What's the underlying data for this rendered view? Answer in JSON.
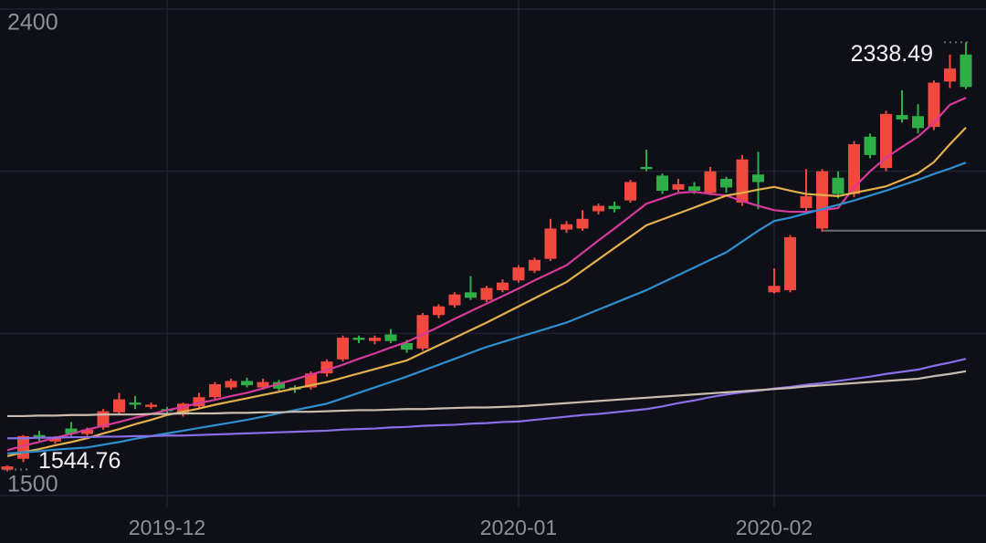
{
  "chart_data": {
    "type": "candlestick",
    "categories": [
      null,
      null,
      null,
      null,
      null,
      null,
      null,
      null,
      null,
      null,
      "2019-12",
      null,
      null,
      null,
      null,
      null,
      null,
      null,
      null,
      null,
      null,
      null,
      null,
      null,
      null,
      null,
      null,
      null,
      null,
      null,
      null,
      null,
      "2020-01",
      null,
      null,
      null,
      null,
      null,
      null,
      null,
      null,
      null,
      null,
      null,
      null,
      null,
      null,
      null,
      "2020-02",
      null,
      null,
      null,
      null,
      null,
      null,
      null,
      null,
      null,
      null,
      null,
      null
    ],
    "open": [
      1548,
      1568,
      1612,
      1600,
      1624,
      1614,
      1626,
      1654,
      1672,
      1664,
      1660,
      1650,
      1665,
      1682,
      1700,
      1712,
      1700,
      1710,
      1700,
      1700,
      1726,
      1752,
      1792,
      1786,
      1798,
      1782,
      1772,
      1834,
      1852,
      1876,
      1862,
      1880,
      1898,
      1916,
      1938,
      1992,
      1994,
      2026,
      2036,
      2046,
      2108,
      2092,
      2066,
      2072,
      2060,
      2086,
      2042,
      2094,
      1876,
      1880,
      2032,
      1994,
      2088,
      2058,
      2164,
      2106,
      2204,
      2202,
      2182,
      2266,
      2316
    ],
    "high": [
      1556,
      1612,
      1620,
      1610,
      1636,
      1626,
      1660,
      1690,
      1684,
      1672,
      1664,
      1672,
      1690,
      1710,
      1716,
      1718,
      1716,
      1714,
      1704,
      1730,
      1752,
      1796,
      1796,
      1796,
      1808,
      1788,
      1838,
      1854,
      1876,
      1906,
      1888,
      1900,
      1926,
      1940,
      2012,
      2008,
      2028,
      2040,
      2044,
      2084,
      2140,
      2096,
      2086,
      2080,
      2108,
      2090,
      2130,
      2136,
      1920,
      1982,
      2104,
      2104,
      2100,
      2156,
      2170,
      2212,
      2250,
      2224,
      2268,
      2316,
      2338.49
    ],
    "low": [
      1544.76,
      1562,
      1600,
      1596,
      1610,
      1610,
      1622,
      1650,
      1660,
      1660,
      1652,
      1646,
      1660,
      1678,
      1696,
      1700,
      1696,
      1694,
      1690,
      1696,
      1720,
      1748,
      1782,
      1780,
      1782,
      1764,
      1768,
      1828,
      1848,
      1862,
      1858,
      1876,
      1894,
      1912,
      1934,
      1986,
      1990,
      2020,
      2024,
      2042,
      2100,
      2058,
      2062,
      2058,
      2056,
      2060,
      2036,
      2030,
      1874,
      1876,
      2026,
      1988,
      2050,
      2052,
      2124,
      2100,
      2190,
      2170,
      2176,
      2254,
      2252
    ],
    "close": [
      1554,
      1610,
      1608,
      1606,
      1614,
      1622,
      1656,
      1678,
      1668,
      1668,
      1656,
      1670,
      1682,
      1706,
      1712,
      1704,
      1710,
      1698,
      1696,
      1726,
      1748,
      1792,
      1788,
      1792,
      1786,
      1770,
      1834,
      1850,
      1872,
      1866,
      1884,
      1894,
      1922,
      1936,
      1994,
      2002,
      2012,
      2036,
      2030,
      2080,
      2104,
      2064,
      2076,
      2064,
      2100,
      2070,
      2122,
      2080,
      1888,
      1978,
      2054,
      2100,
      2058,
      2150,
      2130,
      2206,
      2196,
      2180,
      2264,
      2290,
      2256
    ],
    "up_color": "#f2493f",
    "down_color": "#2fae48",
    "series": [
      {
        "color": "#d63a9a",
        "values": [
          1584,
          1592,
          1599,
          1607,
          1614,
          1622,
          1629,
          1636,
          1644,
          1651,
          1658,
          1664,
          1671,
          1677,
          1684,
          1690,
          1698,
          1707,
          1715,
          1724,
          1732,
          1742,
          1753,
          1763,
          1774,
          1784,
          1798,
          1812,
          1827,
          1841,
          1855,
          1869,
          1883,
          1898,
          1912,
          1926,
          1949,
          1972,
          1994,
          2017,
          2040,
          2050,
          2060,
          2062,
          2058,
          2055,
          2045,
          2036,
          2028,
          2025,
          2025,
          2028,
          2032,
          2070,
          2100,
          2125,
          2145,
          2164,
          2190,
          2223,
          2236
        ]
      },
      {
        "color": "#e3b04b",
        "values": [
          1573,
          1580,
          1586,
          1593,
          1599,
          1606,
          1615,
          1623,
          1632,
          1640,
          1649,
          1655,
          1661,
          1668,
          1674,
          1680,
          1686,
          1692,
          1698,
          1704,
          1710,
          1718,
          1726,
          1734,
          1742,
          1750,
          1764,
          1778,
          1792,
          1806,
          1820,
          1835,
          1850,
          1865,
          1880,
          1895,
          1916,
          1937,
          1958,
          1979,
          2000,
          2011,
          2022,
          2033,
          2044,
          2055,
          2060,
          2066,
          2071,
          2064,
          2058,
          2056,
          2054,
          2060,
          2066,
          2072,
          2084,
          2096,
          2117,
          2150,
          2181
        ]
      },
      {
        "color": "#2e8fcf",
        "values": [
          1578,
          1580,
          1582,
          1585,
          1587,
          1589,
          1594,
          1599,
          1605,
          1610,
          1615,
          1620,
          1625,
          1630,
          1635,
          1640,
          1646,
          1652,
          1658,
          1664,
          1670,
          1680,
          1690,
          1700,
          1710,
          1720,
          1731,
          1742,
          1753,
          1764,
          1775,
          1784,
          1793,
          1802,
          1811,
          1820,
          1832,
          1844,
          1856,
          1868,
          1880,
          1894,
          1908,
          1922,
          1936,
          1950,
          1970,
          1990,
          2008,
          2014,
          2022,
          2030,
          2038,
          2046,
          2055,
          2064,
          2074,
          2084,
          2095,
          2105,
          2116
        ]
      },
      {
        "color": "#8a6ee8",
        "values": [
          1606,
          1606,
          1607,
          1607,
          1608,
          1608,
          1609,
          1609,
          1610,
          1610,
          1611,
          1611,
          1612,
          1613,
          1614,
          1615,
          1616,
          1617,
          1618,
          1619,
          1620,
          1622,
          1623,
          1624,
          1626,
          1627,
          1629,
          1630,
          1631,
          1633,
          1634,
          1636,
          1637,
          1640,
          1643,
          1646,
          1649,
          1651,
          1654,
          1657,
          1660,
          1665,
          1671,
          1676,
          1682,
          1687,
          1691,
          1694,
          1698,
          1701,
          1705,
          1708,
          1712,
          1716,
          1720,
          1725,
          1729,
          1733,
          1740,
          1746,
          1753
        ]
      },
      {
        "color": "#cbbcb0",
        "values": [
          1647,
          1647,
          1648,
          1648,
          1649,
          1649,
          1650,
          1650,
          1650,
          1651,
          1651,
          1652,
          1652,
          1652,
          1653,
          1653,
          1654,
          1654,
          1655,
          1655,
          1656,
          1657,
          1658,
          1658,
          1659,
          1660,
          1660,
          1661,
          1662,
          1663,
          1663,
          1664,
          1665,
          1667,
          1669,
          1671,
          1673,
          1675,
          1677,
          1679,
          1681,
          1683,
          1685,
          1687,
          1689,
          1691,
          1693,
          1695,
          1697,
          1699,
          1702,
          1704,
          1706,
          1708,
          1710,
          1712,
          1714,
          1716,
          1721,
          1725,
          1730
        ]
      }
    ],
    "price_line": 1990,
    "ylim": [
      1500,
      2400
    ],
    "yticks": [
      1500,
      2400
    ],
    "grid_lines": [
      1800,
      2100
    ],
    "grid": true
  }
}
